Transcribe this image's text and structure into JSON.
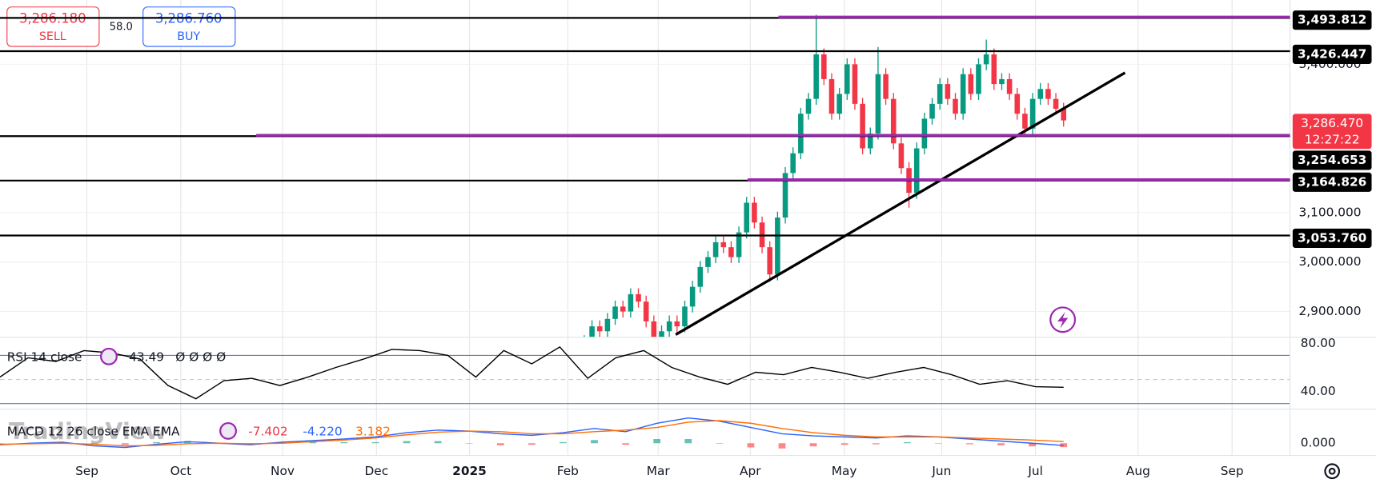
{
  "toolbar": {
    "sell_price": "3,286.180",
    "sell_label": "SELL",
    "spread": "58.0",
    "buy_price": "3,286.760",
    "buy_label": "BUY"
  },
  "watermark": "TradingView",
  "chart_data": [
    {
      "type": "candlestick",
      "categories": [
        null,
        null,
        null,
        null,
        null,
        null,
        null,
        null,
        null,
        null,
        null,
        null,
        null,
        null,
        null,
        null,
        null,
        null,
        null,
        null,
        null,
        null,
        null,
        null,
        null,
        null,
        null,
        null,
        null,
        null,
        null,
        null,
        null,
        null,
        null,
        null,
        null,
        null,
        null,
        null,
        null,
        null,
        null,
        null,
        null,
        null,
        null,
        null,
        null,
        null,
        null,
        null,
        null,
        null,
        null,
        null,
        null,
        null,
        null,
        null,
        null,
        null,
        null,
        null
      ],
      "open": [
        2800,
        2815,
        2840,
        2870,
        2860,
        2885,
        2910,
        2900,
        2935,
        2920,
        2880,
        2845,
        2860,
        2880,
        2870,
        2910,
        2950,
        2990,
        3010,
        3040,
        3030,
        3010,
        3060,
        3120,
        3080,
        3030,
        2975,
        3090,
        3180,
        3220,
        3300,
        3330,
        3420,
        3370,
        3300,
        3340,
        3400,
        3320,
        3230,
        3260,
        3380,
        3330,
        3240,
        3190,
        3140,
        3230,
        3290,
        3320,
        3360,
        3330,
        3300,
        3380,
        3340,
        3400,
        3420,
        3360,
        3370,
        3340,
        3300,
        3270,
        3330,
        3350,
        3330,
        3310
      ],
      "high": [
        2827,
        2852,
        2882,
        2882,
        2897,
        2922,
        2922,
        2947,
        2947,
        2932,
        2892,
        2872,
        2892,
        2892,
        2922,
        2962,
        3002,
        3022,
        3052,
        3052,
        3042,
        3072,
        3132,
        3132,
        3092,
        3042,
        3102,
        3192,
        3232,
        3312,
        3342,
        3500,
        3432,
        3382,
        3352,
        3412,
        3412,
        3332,
        3272,
        3435,
        3392,
        3342,
        3252,
        3202,
        3242,
        3302,
        3332,
        3372,
        3372,
        3342,
        3392,
        3392,
        3412,
        3450,
        3432,
        3382,
        3382,
        3352,
        3312,
        3342,
        3362,
        3362,
        3342,
        3322
      ],
      "low": [
        2788,
        2803,
        2828,
        2848,
        2848,
        2873,
        2888,
        2888,
        2908,
        2868,
        2833,
        2833,
        2848,
        2858,
        2858,
        2898,
        2938,
        2978,
        2998,
        3018,
        2998,
        2998,
        3048,
        3068,
        3018,
        2960,
        2963,
        3078,
        3168,
        3208,
        3288,
        3318,
        3358,
        3288,
        3288,
        3328,
        3308,
        3218,
        3218,
        3248,
        3318,
        3228,
        3178,
        3110,
        3128,
        3218,
        3278,
        3308,
        3318,
        3288,
        3288,
        3328,
        3328,
        3388,
        3348,
        3348,
        3328,
        3288,
        3258,
        3258,
        3318,
        3318,
        3298,
        3274
      ],
      "close": [
        2815,
        2840,
        2870,
        2860,
        2885,
        2910,
        2900,
        2935,
        2920,
        2880,
        2845,
        2860,
        2880,
        2870,
        2910,
        2950,
        2990,
        3010,
        3040,
        3030,
        3010,
        3060,
        3120,
        3080,
        3030,
        2975,
        3090,
        3180,
        3220,
        3300,
        3330,
        3420,
        3370,
        3300,
        3340,
        3400,
        3320,
        3230,
        3260,
        3380,
        3330,
        3240,
        3190,
        3140,
        3230,
        3290,
        3320,
        3360,
        3330,
        3300,
        3380,
        3340,
        3400,
        3420,
        3360,
        3370,
        3340,
        3300,
        3270,
        3330,
        3350,
        3330,
        3310,
        3286.47
      ],
      "up_color": "#089981",
      "down_color": "#f23645",
      "ylim": [
        2848,
        3530
      ],
      "yticks": [
        {
          "value": 2900,
          "label": "2,900.000"
        },
        {
          "value": 3000,
          "label": "3,000.000"
        },
        {
          "value": 3100,
          "label": "3,100.000"
        },
        {
          "value": 3400,
          "label": "3,400.000"
        }
      ],
      "levels": [
        {
          "value": 3493.812,
          "label": "3,493.812"
        },
        {
          "value": 3426.447,
          "label": "3,426.447"
        },
        {
          "value": 3254.653,
          "label": "3,254.653"
        },
        {
          "value": 3164.826,
          "label": "3,164.826"
        },
        {
          "value": 3053.76,
          "label": "3,053.760"
        }
      ],
      "last_price": {
        "value": 3286.47,
        "label": "3,286.470",
        "countdown": "12:27:22"
      },
      "time_labels": [
        "Sep",
        "Oct",
        "Nov",
        "Dec",
        "2025",
        "Feb",
        "Mar",
        "Apr",
        "May",
        "Jun",
        "Jul",
        "Aug",
        "Sep"
      ]
    },
    {
      "type": "line",
      "title": "RSI 14 close",
      "color": "#000000",
      "values": [
        52,
        68,
        65,
        74,
        72,
        67,
        45,
        34,
        49,
        51,
        45,
        52,
        60,
        67,
        75,
        74,
        70,
        52,
        74,
        63,
        77,
        51,
        68,
        74,
        60,
        52,
        46,
        56,
        54,
        60,
        56,
        51,
        56,
        60,
        54,
        46,
        49,
        44,
        43.49
      ],
      "placeholders": "Ø Ø Ø Ø",
      "ylim": [
        26.9,
        85.1
      ],
      "yticks": [
        {
          "value": 40,
          "label": "40.00"
        },
        {
          "value": 80,
          "label": "80.00"
        }
      ],
      "bands": [
        70,
        50,
        30
      ]
    },
    {
      "type": "macd",
      "title": "MACD 12 26 close EMA EMA",
      "histogram": {
        "up_color": "#26a69a",
        "down_color": "#ff5252",
        "values": [
          -1,
          1,
          2,
          -3,
          -3,
          2,
          4,
          0,
          -2,
          2,
          2,
          2,
          2,
          4,
          4,
          0,
          -4,
          -3,
          2,
          6,
          -3,
          8,
          8,
          -1,
          -8,
          -10,
          -6,
          -3,
          -2,
          2,
          0,
          -2,
          -4,
          -6,
          -7.402
        ]
      },
      "series": [
        {
          "color": "#2962ff",
          "values": [
            -3,
            0,
            2,
            -5,
            -8,
            -2,
            3,
            0,
            -3,
            2,
            5,
            8,
            12,
            20,
            25,
            23,
            18,
            15,
            20,
            28,
            22,
            38,
            48,
            42,
            30,
            18,
            14,
            12,
            10,
            14,
            12,
            8,
            4,
            0,
            -4.22
          ],
          "last_label": "-4.220"
        },
        {
          "color": "#ff6d00",
          "values": [
            -2,
            -1,
            0,
            -2,
            -5,
            -4,
            -1,
            0,
            -1,
            0,
            3,
            6,
            10,
            16,
            21,
            23,
            22,
            18,
            18,
            22,
            25,
            30,
            40,
            43,
            38,
            28,
            20,
            15,
            12,
            12,
            12,
            10,
            8,
            6,
            3.182
          ]
        }
      ],
      "ylim": [
        -23.3,
        60
      ],
      "yticks": [
        {
          "value": 0,
          "label": "0.000"
        }
      ]
    }
  ]
}
